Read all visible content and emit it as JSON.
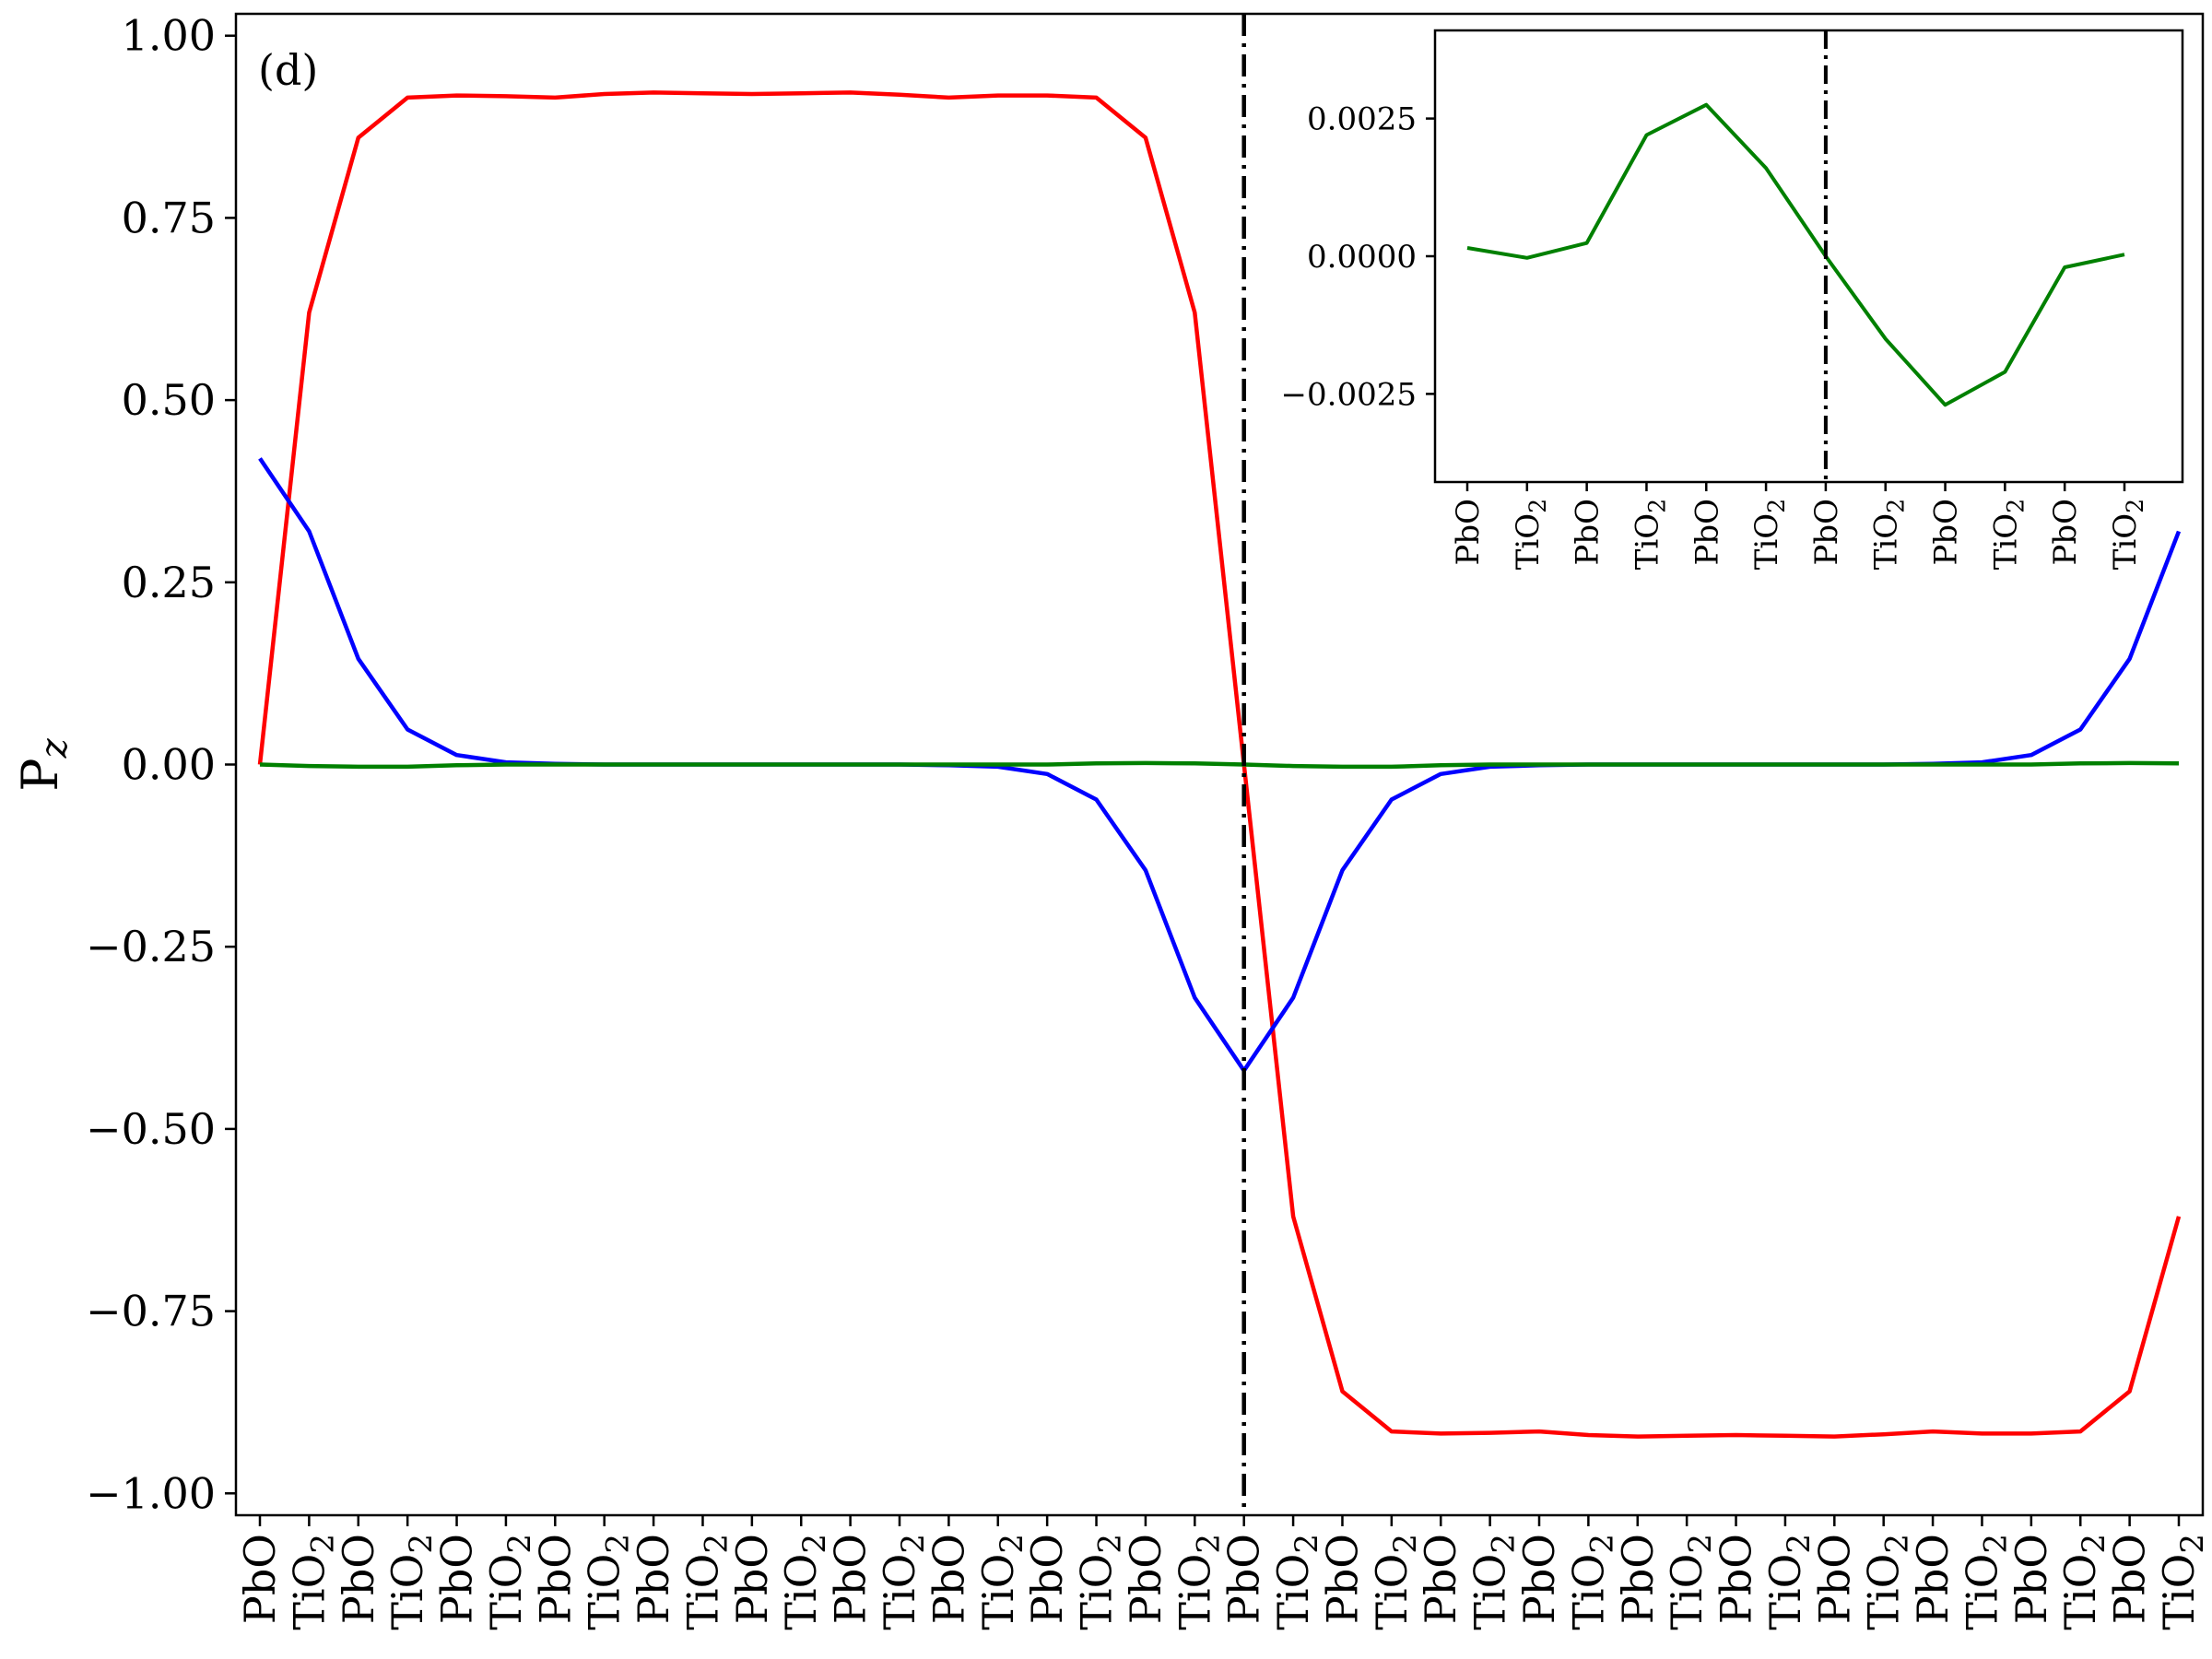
{
  "chart_data": [
    {
      "type": "line",
      "panel_label": "(d)",
      "ylabel": "P",
      "ylabel_subscript": "z",
      "xlabel": "",
      "ylim": [
        -1.03,
        1.03
      ],
      "yticks": [
        1.0,
        0.75,
        0.5,
        0.25,
        0.0,
        -0.25,
        -0.5,
        -0.75,
        -1.0
      ],
      "ytick_labels": [
        "1.00",
        "0.75",
        "0.50",
        "0.25",
        "0.00",
        "−0.25",
        "−0.50",
        "−0.75",
        "−1.00"
      ],
      "domain_wall_index": 20,
      "categories": [
        {
          "base": "PbO",
          "sub": ""
        },
        {
          "base": "TiO",
          "sub": "2"
        },
        {
          "base": "PbO",
          "sub": ""
        },
        {
          "base": "TiO",
          "sub": "2"
        },
        {
          "base": "PbO",
          "sub": ""
        },
        {
          "base": "TiO",
          "sub": "2"
        },
        {
          "base": "PbO",
          "sub": ""
        },
        {
          "base": "TiO",
          "sub": "2"
        },
        {
          "base": "PbO",
          "sub": ""
        },
        {
          "base": "TiO",
          "sub": "2"
        },
        {
          "base": "PbO",
          "sub": ""
        },
        {
          "base": "TiO",
          "sub": "2"
        },
        {
          "base": "PbO",
          "sub": ""
        },
        {
          "base": "TiO",
          "sub": "2"
        },
        {
          "base": "PbO",
          "sub": ""
        },
        {
          "base": "TiO",
          "sub": "2"
        },
        {
          "base": "PbO",
          "sub": ""
        },
        {
          "base": "TiO",
          "sub": "2"
        },
        {
          "base": "PbO",
          "sub": ""
        },
        {
          "base": "TiO",
          "sub": "2"
        },
        {
          "base": "PbO",
          "sub": ""
        },
        {
          "base": "TiO",
          "sub": "2"
        },
        {
          "base": "PbO",
          "sub": ""
        },
        {
          "base": "TiO",
          "sub": "2"
        },
        {
          "base": "PbO",
          "sub": ""
        },
        {
          "base": "TiO",
          "sub": "2"
        },
        {
          "base": "PbO",
          "sub": ""
        },
        {
          "base": "TiO",
          "sub": "2"
        },
        {
          "base": "PbO",
          "sub": ""
        },
        {
          "base": "TiO",
          "sub": "2"
        },
        {
          "base": "PbO",
          "sub": ""
        },
        {
          "base": "TiO",
          "sub": "2"
        },
        {
          "base": "PbO",
          "sub": ""
        },
        {
          "base": "TiO",
          "sub": "2"
        },
        {
          "base": "PbO",
          "sub": ""
        },
        {
          "base": "TiO",
          "sub": "2"
        },
        {
          "base": "PbO",
          "sub": ""
        },
        {
          "base": "TiO",
          "sub": "2"
        },
        {
          "base": "PbO",
          "sub": ""
        },
        {
          "base": "TiO",
          "sub": "2"
        }
      ],
      "series": [
        {
          "color": "#ff0000",
          "values": [
            0.0,
            0.62,
            0.86,
            0.915,
            0.918,
            0.917,
            0.915,
            0.92,
            0.922,
            0.921,
            0.92,
            0.921,
            0.922,
            0.919,
            0.915,
            0.918,
            0.918,
            0.915,
            0.86,
            0.62,
            0.0,
            -0.62,
            -0.86,
            -0.915,
            -0.918,
            -0.917,
            -0.915,
            -0.92,
            -0.922,
            -0.921,
            -0.92,
            -0.921,
            -0.922,
            -0.919,
            -0.915,
            -0.918,
            -0.918,
            -0.915,
            -0.86,
            -0.62
          ]
        },
        {
          "color": "#0000ff",
          "values": [
            0.42,
            0.32,
            0.145,
            0.048,
            0.013,
            0.003,
            0.001,
            0.0,
            0.0,
            0.0,
            0.0,
            0.0,
            0.0,
            0.0,
            -0.001,
            -0.003,
            -0.013,
            -0.048,
            -0.145,
            -0.32,
            -0.42,
            -0.32,
            -0.145,
            -0.048,
            -0.013,
            -0.003,
            -0.001,
            0.0,
            0.0,
            0.0,
            0.0,
            0.0,
            0.0,
            0.0,
            0.001,
            0.003,
            0.013,
            0.048,
            0.145,
            0.32
          ]
        },
        {
          "color": "#008000",
          "values": [
            0.0,
            -0.002,
            -0.003,
            -0.003,
            -0.001,
            0.0,
            0.0,
            0.0,
            0.0,
            0.0,
            0.0,
            0.0,
            0.0,
            0.0,
            0.0,
            0.0,
            0.0,
            0.0015,
            0.002,
            0.0015,
            0.0,
            -0.002,
            -0.003,
            -0.003,
            -0.001,
            0.0,
            0.0,
            0.0,
            0.0,
            0.0,
            0.0,
            0.0,
            0.0,
            0.0,
            0.0,
            0.0,
            0.0,
            0.0015,
            0.002,
            0.0015
          ]
        }
      ],
      "grid": false,
      "legend": "none"
    },
    {
      "type": "line",
      "inset": true,
      "ylim": [
        -0.0041,
        0.0041
      ],
      "yticks": [
        0.0025,
        0.0,
        -0.0025
      ],
      "ytick_labels": [
        "0.0025",
        "0.0000",
        "−0.0025"
      ],
      "domain_wall_index": 6,
      "categories": [
        {
          "base": "PbO",
          "sub": ""
        },
        {
          "base": "TiO",
          "sub": "2"
        },
        {
          "base": "PbO",
          "sub": ""
        },
        {
          "base": "TiO",
          "sub": "2"
        },
        {
          "base": "PbO",
          "sub": ""
        },
        {
          "base": "TiO",
          "sub": "2"
        },
        {
          "base": "PbO",
          "sub": ""
        },
        {
          "base": "TiO",
          "sub": "2"
        },
        {
          "base": "PbO",
          "sub": ""
        },
        {
          "base": "TiO",
          "sub": "2"
        },
        {
          "base": "PbO",
          "sub": ""
        },
        {
          "base": "TiO",
          "sub": "2"
        }
      ],
      "series": [
        {
          "color": "#008000",
          "values": [
            0.00015,
            -3e-05,
            0.00024,
            0.0022,
            0.00275,
            0.0016,
            0.0,
            -0.0015,
            -0.0027,
            -0.0021,
            -0.0002,
            3e-05
          ]
        }
      ],
      "grid": false,
      "legend": "none"
    }
  ]
}
